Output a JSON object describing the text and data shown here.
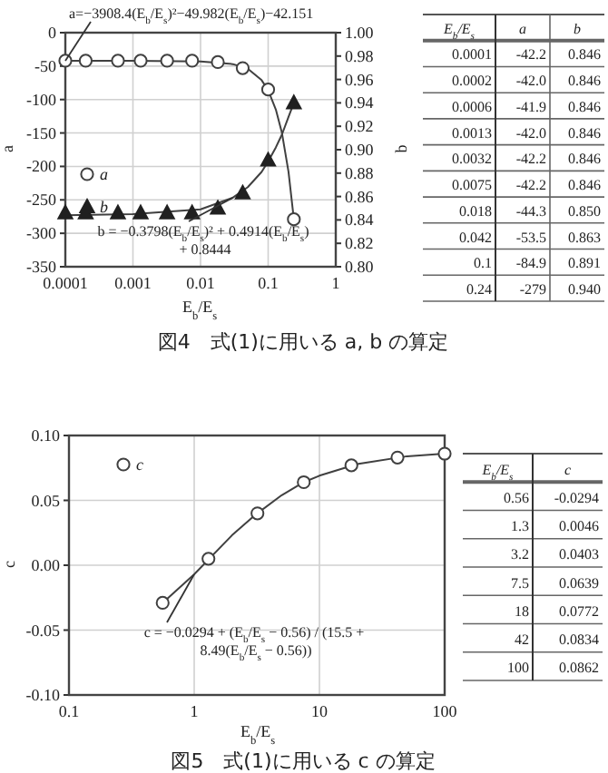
{
  "chart_data": [
    {
      "type": "scatter",
      "xlabel": "E$_{b}$/E$_{s}$",
      "ylabel": "a",
      "y2label": "b",
      "log": "x",
      "grid": true,
      "legend": "left",
      "xlim": [
        0.0001,
        1
      ],
      "xticks": [
        0.0001,
        0.001,
        0.01,
        0.1,
        1
      ],
      "ylim": [
        -350,
        0
      ],
      "yticks": [
        -350,
        -300,
        -250,
        -200,
        -150,
        -100,
        -50,
        0
      ],
      "y2lim": [
        0.8,
        1.0
      ],
      "y2ticks": [
        {
          "value": 0.8,
          "label": "0.80"
        },
        {
          "value": 0.82,
          "label": "0.82"
        },
        {
          "value": 0.84,
          "label": "0.84"
        },
        {
          "value": 0.86,
          "label": "0.86"
        },
        {
          "value": 0.88,
          "label": "0.88"
        },
        {
          "value": 0.9,
          "label": "0.90"
        },
        {
          "value": 0.92,
          "label": "0.92"
        },
        {
          "value": 0.94,
          "label": "0.94"
        },
        {
          "value": 0.96,
          "label": "0.96"
        },
        {
          "value": 0.98,
          "label": "0.98"
        },
        {
          "value": 1.0,
          "label": "1.00"
        }
      ],
      "x": [
        0.0001,
        0.0002,
        0.0006,
        0.0013,
        0.0032,
        0.0075,
        0.018,
        0.042,
        0.1,
        0.24
      ],
      "series": [
        {
          "name": "a",
          "type": "scatter",
          "marker": "circle",
          "color": "#404040",
          "values": [
            -42,
            -42,
            -42,
            -42,
            -42,
            -42,
            -44,
            -53,
            -85,
            -279
          ]
        },
        {
          "name": "b",
          "type": "scatter",
          "marker": "triangle",
          "axis": "y2",
          "color": "#202020",
          "values": [
            0.846,
            0.846,
            0.846,
            0.846,
            0.846,
            0.846,
            0.85,
            0.863,
            0.891,
            0.94
          ]
        },
        {
          "type": "line",
          "color": "#404040",
          "x": [
            0.0001,
            0.001,
            0.01,
            0.03,
            0.05,
            0.08,
            0.1,
            0.13,
            0.16,
            0.2,
            0.24
          ],
          "values": [
            -42,
            -42,
            -43,
            -47,
            -54,
            -71,
            -86,
            -115,
            -150,
            -208,
            -279
          ]
        },
        {
          "type": "line",
          "axis": "y2",
          "color": "#404040",
          "x": [
            0.0001,
            0.001,
            0.01,
            0.03,
            0.05,
            0.08,
            0.1,
            0.13,
            0.16,
            0.2,
            0.24
          ],
          "values": [
            0.844,
            0.845,
            0.849,
            0.859,
            0.868,
            0.881,
            0.89,
            0.902,
            0.913,
            0.928,
            0.94
          ]
        }
      ],
      "annotations": [
        "a=−3908.4(E$_{b}$/E$_{s}$)²−49.982(E$_{b}$/E$_{s}$)−42.151",
        "b = −0.3798(E$_{b}$/E$_{s}$)² + 0.4914(E$_{b}$/E$_{s}$) + 0.8444",
        "図4　式(1)に用いる a, b の算定"
      ]
    },
    {
      "type": "other",
      "annotations": [
        "E$_{b}$/E$_{s}$",
        "a",
        "b",
        "0.0001",
        "-42.2",
        "0.846",
        "0.0002",
        "-42.0",
        "0.846",
        "0.0006",
        "-41.9",
        "0.846",
        "0.0013",
        "-42.0",
        "0.846",
        "0.0032",
        "-42.2",
        "0.846",
        "0.0075",
        "-42.2",
        "0.846",
        "0.018",
        "-44.3",
        "0.850",
        "0.042",
        "-53.5",
        "0.863",
        "0.1",
        "-84.9",
        "0.891",
        "0.24",
        "-279",
        "0.940"
      ]
    },
    {
      "type": "scatter",
      "xlabel": "E$_{b}$/E$_{s}$",
      "ylabel": "c",
      "log": "x",
      "grid": true,
      "legend": "top left",
      "xlim": [
        0.1,
        100
      ],
      "xticks": [
        0.1,
        1,
        10,
        100
      ],
      "ylim": [
        -0.1,
        0.1
      ],
      "yticks": [
        {
          "value": -0.1,
          "label": "-0.10"
        },
        {
          "value": -0.05,
          "label": "-0.05"
        },
        {
          "value": 0,
          "label": "0.00"
        },
        {
          "value": 0.05,
          "label": "0.05"
        },
        {
          "value": 0.1,
          "label": "0.10"
        }
      ],
      "x": [
        0.56,
        1.3,
        3.2,
        7.5,
        18,
        42,
        100
      ],
      "series": [
        {
          "name": "c",
          "type": "scatter",
          "marker": "circle",
          "color": "#404040",
          "values": [
            -0.029,
            0.005,
            0.04,
            0.064,
            0.077,
            0.083,
            0.086
          ]
        },
        {
          "type": "line",
          "color": "#404040",
          "x": [
            0.56,
            1,
            2,
            3,
            5,
            7.5,
            10,
            20,
            50,
            100
          ],
          "values": [
            -0.029,
            -0.007,
            0.023,
            0.038,
            0.054,
            0.064,
            0.069,
            0.078,
            0.084,
            0.086
          ]
        }
      ],
      "annotations": [
        "c = −0.0294 + (E$_{b}$/E$_{s}$ − 0.56) / (15.5 + 8.49(E$_{b}$/E$_{s}$ − 0.56))",
        "図5　式(1)に用いる c の算定"
      ]
    },
    {
      "type": "other",
      "annotations": [
        "E$_{b}$/E$_{s}$",
        "c",
        "0.56",
        "-0.0294",
        "1.3",
        "0.0046",
        "3.2",
        "0.0403",
        "7.5",
        "0.0639",
        "18",
        "0.0772",
        "42",
        "0.0834",
        "100",
        "0.0862"
      ]
    }
  ]
}
